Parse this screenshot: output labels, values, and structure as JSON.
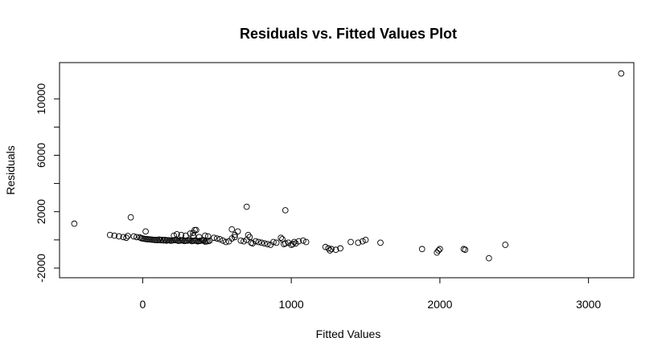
{
  "chart_data": {
    "type": "scatter",
    "title": "Residuals vs. Fitted Values Plot",
    "xlabel": "Fitted Values",
    "ylabel": "Residuals",
    "xlim": [
      -500,
      3240
    ],
    "ylim": [
      -2000,
      12000
    ],
    "xticks": [
      0,
      1000,
      2000,
      3000
    ],
    "xtick_labels": [
      "0",
      "1000",
      "2000",
      "3000"
    ],
    "yticks": [
      -2000,
      0,
      2000,
      4000,
      6000,
      8000,
      10000
    ],
    "ytick_labels": [
      "-2000",
      "",
      "2000",
      "",
      "6000",
      "",
      "10000"
    ],
    "grid": false,
    "point_style": "open-circle",
    "color": "#000000",
    "x": [
      -460,
      -220,
      -190,
      -160,
      -130,
      -100,
      -80,
      -110,
      -60,
      -40,
      -20,
      -10,
      0,
      10,
      20,
      30,
      40,
      50,
      60,
      70,
      80,
      90,
      100,
      110,
      120,
      130,
      140,
      150,
      160,
      170,
      180,
      190,
      200,
      210,
      220,
      230,
      240,
      250,
      260,
      270,
      280,
      290,
      300,
      310,
      320,
      330,
      340,
      350,
      360,
      370,
      380,
      390,
      400,
      410,
      420,
      430,
      440,
      450,
      210,
      230,
      260,
      290,
      320,
      340,
      350,
      380,
      420,
      440,
      480,
      500,
      520,
      540,
      560,
      580,
      600,
      620,
      640,
      660,
      680,
      700,
      710,
      720,
      730,
      740,
      760,
      780,
      800,
      820,
      840,
      860,
      880,
      900,
      930,
      940,
      950,
      960,
      980,
      1000,
      1010,
      1020,
      1030,
      1050,
      1080,
      1100,
      20,
      340,
      360,
      620,
      600,
      700,
      960,
      1230,
      1250,
      1260,
      1270,
      1300,
      1330,
      1400,
      1450,
      1480,
      1500,
      1600,
      1880,
      1990,
      2000,
      1980,
      2160,
      2170,
      2330,
      2440,
      3220
    ],
    "y": [
      1150,
      350,
      300,
      250,
      200,
      280,
      1600,
      150,
      250,
      200,
      180,
      120,
      100,
      80,
      60,
      50,
      40,
      30,
      20,
      10,
      0,
      -10,
      -20,
      30,
      -30,
      10,
      -40,
      0,
      -50,
      -20,
      -30,
      -60,
      -40,
      -20,
      -10,
      -30,
      -70,
      -50,
      -40,
      -20,
      -80,
      -60,
      -50,
      -30,
      -20,
      -90,
      -70,
      -50,
      -60,
      -100,
      -80,
      -60,
      -40,
      -30,
      -120,
      -100,
      -90,
      -60,
      300,
      400,
      350,
      300,
      450,
      500,
      700,
      200,
      300,
      250,
      150,
      100,
      50,
      -50,
      -150,
      -100,
      100,
      200,
      600,
      -50,
      -100,
      2350,
      350,
      200,
      -200,
      -250,
      -100,
      -150,
      -200,
      -250,
      -300,
      -350,
      -150,
      -200,
      150,
      50,
      -300,
      -250,
      -200,
      -350,
      -300,
      -150,
      -250,
      -100,
      -50,
      -150,
      600,
      300,
      700,
      350,
      750,
      0,
      2100,
      -500,
      -600,
      -750,
      -650,
      -700,
      -600,
      -150,
      -200,
      -100,
      0,
      -200,
      -650,
      -750,
      -650,
      -900,
      -650,
      -700,
      -1300,
      -350,
      11800
    ]
  }
}
